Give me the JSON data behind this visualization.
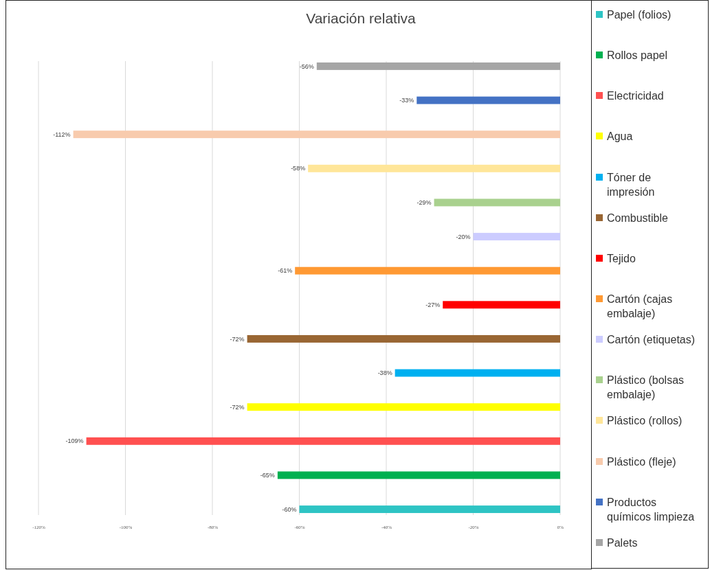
{
  "chart_data": {
    "type": "bar",
    "orientation": "horizontal",
    "title": "Variación relativa",
    "categories": [
      null,
      null,
      null,
      null,
      null,
      null,
      null,
      null,
      null,
      null,
      null,
      null,
      null,
      null
    ],
    "series": [
      {
        "name": "Papel (folios)",
        "color": "#2ec4c4",
        "values": [
          null,
          null,
          null,
          null,
          null,
          null,
          null,
          null,
          null,
          null,
          null,
          null,
          null,
          -60
        ],
        "value_labels": [
          null,
          null,
          null,
          null,
          null,
          null,
          null,
          null,
          null,
          null,
          null,
          null,
          null,
          "-60%"
        ]
      },
      {
        "name": "Rollos papel",
        "color": "#00b050",
        "values": [
          null,
          null,
          null,
          null,
          null,
          null,
          null,
          null,
          null,
          null,
          null,
          null,
          -65,
          null
        ],
        "value_labels": [
          null,
          null,
          null,
          null,
          null,
          null,
          null,
          null,
          null,
          null,
          null,
          null,
          "-65%",
          null
        ]
      },
      {
        "name": "Electricidad",
        "color": "#ff5050",
        "values": [
          null,
          null,
          null,
          null,
          null,
          null,
          null,
          null,
          null,
          null,
          null,
          -109,
          null,
          null
        ],
        "value_labels": [
          null,
          null,
          null,
          null,
          null,
          null,
          null,
          null,
          null,
          null,
          null,
          "-109%",
          null,
          null
        ]
      },
      {
        "name": "Agua",
        "color": "#ffff00",
        "values": [
          null,
          null,
          null,
          null,
          null,
          null,
          null,
          null,
          null,
          null,
          -72,
          null,
          null,
          null
        ],
        "value_labels": [
          null,
          null,
          null,
          null,
          null,
          null,
          null,
          null,
          null,
          null,
          "-72%",
          null,
          null,
          null
        ]
      },
      {
        "name": "Tóner de impresión",
        "color": "#00b0f0",
        "values": [
          null,
          null,
          null,
          null,
          null,
          null,
          null,
          null,
          null,
          -38,
          null,
          null,
          null,
          null
        ],
        "value_labels": [
          null,
          null,
          null,
          null,
          null,
          null,
          null,
          null,
          null,
          "-38%",
          null,
          null,
          null,
          null
        ]
      },
      {
        "name": "Combustible",
        "color": "#996633",
        "values": [
          null,
          null,
          null,
          null,
          null,
          null,
          null,
          null,
          -72,
          null,
          null,
          null,
          null,
          null
        ],
        "value_labels": [
          null,
          null,
          null,
          null,
          null,
          null,
          null,
          null,
          "-72%",
          null,
          null,
          null,
          null,
          null
        ]
      },
      {
        "name": "Tejido",
        "color": "#ff0000",
        "values": [
          null,
          null,
          null,
          null,
          null,
          null,
          null,
          -27,
          null,
          null,
          null,
          null,
          null,
          null
        ],
        "value_labels": [
          null,
          null,
          null,
          null,
          null,
          null,
          null,
          "-27%",
          null,
          null,
          null,
          null,
          null,
          null
        ]
      },
      {
        "name": "Cartón (cajas embalaje)",
        "color": "#ff9933",
        "values": [
          null,
          null,
          null,
          null,
          null,
          null,
          -61,
          null,
          null,
          null,
          null,
          null,
          null,
          null
        ],
        "value_labels": [
          null,
          null,
          null,
          null,
          null,
          null,
          "-61%",
          null,
          null,
          null,
          null,
          null,
          null,
          null
        ]
      },
      {
        "name": "Cartón (etiquetas)",
        "color": "#ccccff",
        "values": [
          null,
          null,
          null,
          null,
          null,
          -20,
          null,
          null,
          null,
          null,
          null,
          null,
          null,
          null
        ],
        "value_labels": [
          null,
          null,
          null,
          null,
          null,
          "-20%",
          null,
          null,
          null,
          null,
          null,
          null,
          null,
          null
        ]
      },
      {
        "name": "Plástico (bolsas embalaje)",
        "color": "#a9d18e",
        "values": [
          null,
          null,
          null,
          null,
          -29,
          null,
          null,
          null,
          null,
          null,
          null,
          null,
          null,
          null
        ],
        "value_labels": [
          null,
          null,
          null,
          null,
          "-29%",
          null,
          null,
          null,
          null,
          null,
          null,
          null,
          null,
          null
        ]
      },
      {
        "name": "Plástico (rollos)",
        "color": "#ffe699",
        "values": [
          null,
          null,
          null,
          -58,
          null,
          null,
          null,
          null,
          null,
          null,
          null,
          null,
          null,
          null
        ],
        "value_labels": [
          null,
          null,
          null,
          "-58%",
          null,
          null,
          null,
          null,
          null,
          null,
          null,
          null,
          null,
          null
        ]
      },
      {
        "name": "Plástico (fleje)",
        "color": "#f8cbad",
        "values": [
          null,
          null,
          -112,
          null,
          null,
          null,
          null,
          null,
          null,
          null,
          null,
          null,
          null,
          null
        ],
        "value_labels": [
          null,
          null,
          "-112%",
          null,
          null,
          null,
          null,
          null,
          null,
          null,
          null,
          null,
          null,
          null
        ]
      },
      {
        "name": "Productos químicos limpieza",
        "color": "#4472c4",
        "values": [
          null,
          -33,
          null,
          null,
          null,
          null,
          null,
          null,
          null,
          null,
          null,
          null,
          null,
          null
        ],
        "value_labels": [
          null,
          "-33%",
          null,
          null,
          null,
          null,
          null,
          null,
          null,
          null,
          null,
          null,
          null,
          null
        ]
      },
      {
        "name": "Palets",
        "color": "#a5a5a5",
        "values": [
          -56,
          null,
          null,
          null,
          null,
          null,
          null,
          null,
          null,
          null,
          null,
          null,
          null,
          null
        ],
        "value_labels": [
          "-56%",
          null,
          null,
          null,
          null,
          null,
          null,
          null,
          null,
          null,
          null,
          null,
          null,
          null
        ]
      }
    ],
    "xlim": [
      -120,
      0
    ],
    "xticks": [
      {
        "value": -120,
        "label": "-120%"
      },
      {
        "value": -100,
        "label": "-100%"
      },
      {
        "value": -80,
        "label": "-80%"
      },
      {
        "value": -60,
        "label": "-60%"
      },
      {
        "value": -40,
        "label": "-40%"
      },
      {
        "value": -20,
        "label": "-20%"
      },
      {
        "value": 0,
        "label": "0%"
      }
    ],
    "grid": "x",
    "legend": "right",
    "tick_labels": "x"
  }
}
